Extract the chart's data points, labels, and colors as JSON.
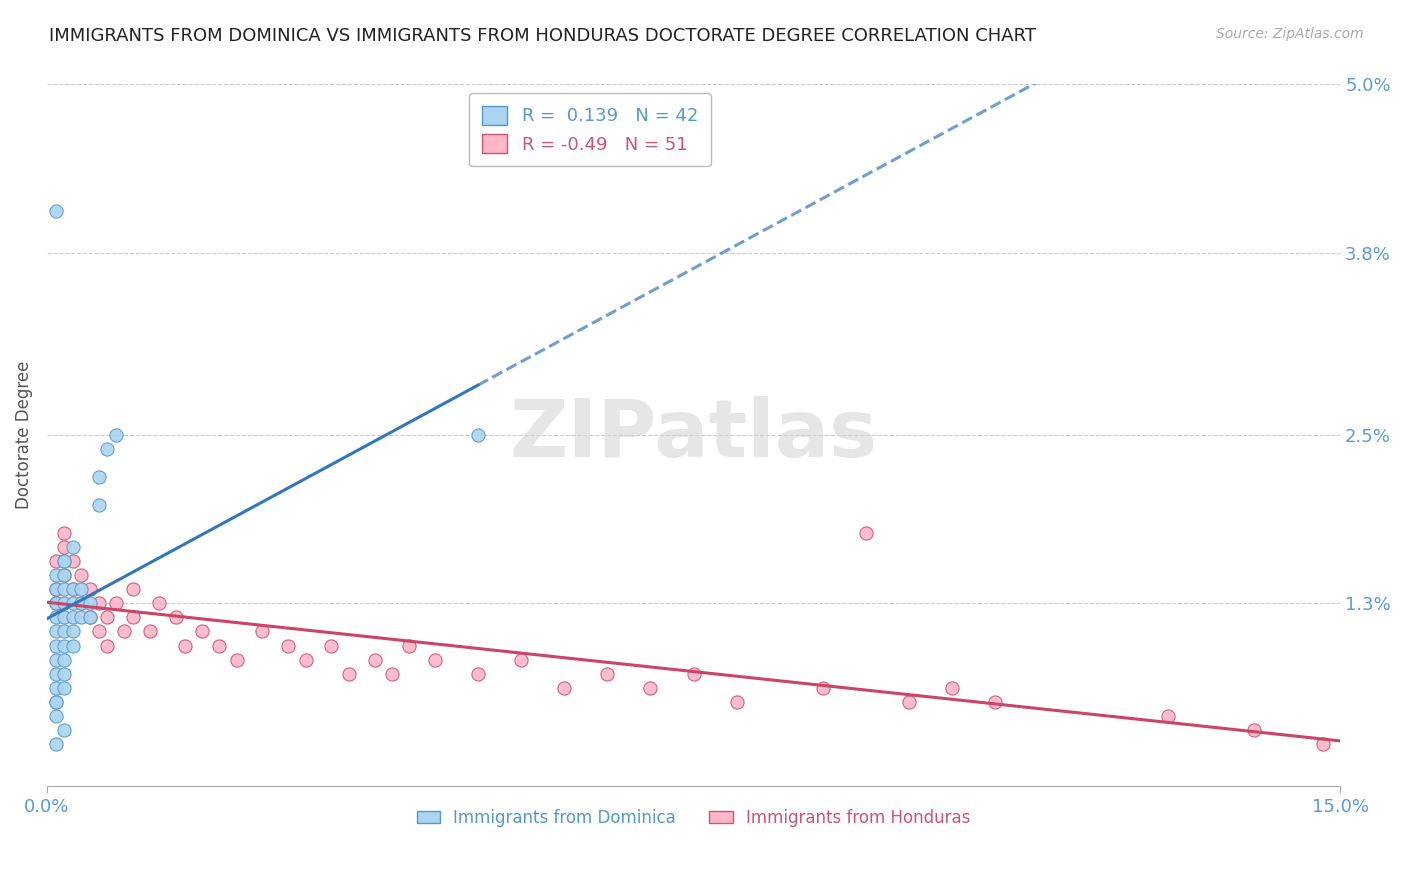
{
  "title": "IMMIGRANTS FROM DOMINICA VS IMMIGRANTS FROM HONDURAS DOCTORATE DEGREE CORRELATION CHART",
  "source": "Source: ZipAtlas.com",
  "ylabel": "Doctorate Degree",
  "xlim": [
    0.0,
    0.15
  ],
  "ylim": [
    0.0,
    0.05
  ],
  "yticks": [
    0.0,
    0.013,
    0.025,
    0.038,
    0.05
  ],
  "ytick_labels": [
    "",
    "1.3%",
    "2.5%",
    "3.8%",
    "5.0%"
  ],
  "xticks": [
    0.0,
    0.15
  ],
  "xtick_labels": [
    "0.0%",
    "15.0%"
  ],
  "dominica": {
    "name": "Immigrants from Dominica",
    "R": 0.139,
    "N": 42,
    "color": "#aad4f0",
    "edge_color": "#5599cc",
    "trend_color": "#3377bb",
    "scatter_x": [
      0.001,
      0.001,
      0.001,
      0.001,
      0.001,
      0.001,
      0.001,
      0.001,
      0.001,
      0.001,
      0.002,
      0.002,
      0.002,
      0.002,
      0.002,
      0.002,
      0.002,
      0.002,
      0.002,
      0.003,
      0.003,
      0.003,
      0.003,
      0.003,
      0.004,
      0.004,
      0.004,
      0.005,
      0.005,
      0.006,
      0.006,
      0.007,
      0.008,
      0.001,
      0.001,
      0.002,
      0.002,
      0.003,
      0.05,
      0.001,
      0.002,
      0.001
    ],
    "scatter_y": [
      0.012,
      0.013,
      0.014,
      0.01,
      0.009,
      0.011,
      0.008,
      0.015,
      0.007,
      0.006,
      0.013,
      0.012,
      0.01,
      0.014,
      0.009,
      0.011,
      0.015,
      0.008,
      0.016,
      0.012,
      0.013,
      0.014,
      0.011,
      0.01,
      0.013,
      0.014,
      0.012,
      0.013,
      0.012,
      0.02,
      0.022,
      0.024,
      0.025,
      0.005,
      0.006,
      0.007,
      0.016,
      0.017,
      0.025,
      0.041,
      0.004,
      0.003
    ]
  },
  "honduras": {
    "name": "Immigrants from Honduras",
    "R": -0.49,
    "N": 51,
    "color": "#ffb6c8",
    "edge_color": "#cc5577",
    "trend_color": "#cc4466",
    "scatter_x": [
      0.001,
      0.001,
      0.001,
      0.002,
      0.002,
      0.002,
      0.003,
      0.003,
      0.004,
      0.004,
      0.005,
      0.005,
      0.006,
      0.006,
      0.007,
      0.007,
      0.008,
      0.009,
      0.01,
      0.01,
      0.012,
      0.013,
      0.015,
      0.016,
      0.018,
      0.02,
      0.022,
      0.025,
      0.028,
      0.03,
      0.033,
      0.035,
      0.038,
      0.04,
      0.042,
      0.045,
      0.05,
      0.055,
      0.06,
      0.065,
      0.07,
      0.075,
      0.08,
      0.09,
      0.095,
      0.1,
      0.105,
      0.11,
      0.13,
      0.14,
      0.148
    ],
    "scatter_y": [
      0.016,
      0.014,
      0.013,
      0.017,
      0.015,
      0.018,
      0.016,
      0.014,
      0.015,
      0.013,
      0.014,
      0.012,
      0.013,
      0.011,
      0.012,
      0.01,
      0.013,
      0.011,
      0.014,
      0.012,
      0.011,
      0.013,
      0.012,
      0.01,
      0.011,
      0.01,
      0.009,
      0.011,
      0.01,
      0.009,
      0.01,
      0.008,
      0.009,
      0.008,
      0.01,
      0.009,
      0.008,
      0.009,
      0.007,
      0.008,
      0.007,
      0.008,
      0.006,
      0.007,
      0.018,
      0.006,
      0.007,
      0.006,
      0.005,
      0.004,
      0.003
    ]
  },
  "watermark": "ZIPatlas",
  "bg_color": "#ffffff",
  "grid_color": "#cccccc",
  "title_fontsize": 13,
  "tick_label_color": "#5b9bd5"
}
